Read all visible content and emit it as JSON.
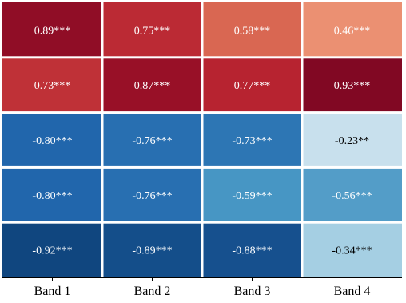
{
  "chart_data": {
    "type": "heatmap",
    "columns": [
      "Band 1",
      "Band 2",
      "Band 3",
      "Band 4"
    ],
    "rows": 5,
    "values": [
      [
        0.89,
        0.75,
        0.58,
        0.46
      ],
      [
        0.73,
        0.87,
        0.77,
        0.93
      ],
      [
        -0.8,
        -0.76,
        -0.73,
        -0.23
      ],
      [
        -0.8,
        -0.76,
        -0.59,
        -0.56
      ],
      [
        -0.92,
        -0.89,
        -0.88,
        -0.34
      ]
    ],
    "labels": [
      [
        "0.89***",
        "0.75***",
        "0.58***",
        "0.46***"
      ],
      [
        "0.73***",
        "0.87***",
        "0.77***",
        "0.93***"
      ],
      [
        "-0.80***",
        "-0.76***",
        "-0.73***",
        "-0.23**"
      ],
      [
        "-0.80***",
        "-0.76***",
        "-0.59***",
        "-0.56***"
      ],
      [
        "-0.92***",
        "-0.89***",
        "-0.88***",
        "-0.34***"
      ]
    ],
    "colormap": "RdBu_r",
    "vmin": -1,
    "vmax": 1,
    "grid": false,
    "legend": "none"
  }
}
